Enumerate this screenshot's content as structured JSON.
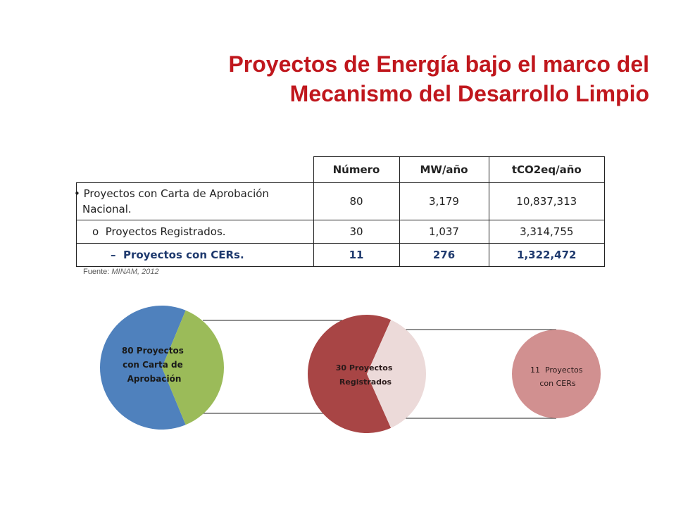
{
  "title": {
    "line1": "Proyectos de Energía bajo el marco del",
    "line2": "Mecanismo del Desarrollo Limpio"
  },
  "table": {
    "headers": [
      "",
      "Número",
      "MW/año",
      "tCO2eq/año"
    ],
    "rows": [
      {
        "bullet": "•",
        "label": "Proyectos con Carta de Aprobación Nacional.",
        "numero": "80",
        "mw": "3,179",
        "tco2": "10,837,313"
      },
      {
        "bullet": "o",
        "label": "Proyectos Registrados.",
        "numero": "30",
        "mw": "1,037",
        "tco2": "3,314,755"
      },
      {
        "bullet": "–",
        "label": "Proyectos con CERs.",
        "numero": "11",
        "mw": "276",
        "tco2": "1,322,472"
      }
    ]
  },
  "source": {
    "label": "Fuente:",
    "value": "MINAM, 2012"
  },
  "chart_data": {
    "type": "pie",
    "pies": [
      {
        "label_lines": [
          "80 Proyectos",
          "con Carta de",
          "Aprobación"
        ],
        "total": 80,
        "highlighted": 30,
        "colors": {
          "main": "#4f81bd",
          "slice": "#9bbb59"
        }
      },
      {
        "label_lines": [
          "30 Proyectos",
          "Registrados"
        ],
        "total": 30,
        "highlighted": 11,
        "colors": {
          "main": "#a84545",
          "slice": "#ecdad9"
        }
      },
      {
        "label_lines": [
          "11  Proyectos",
          "con CERs"
        ],
        "total": 11,
        "colors": {
          "main": "#d19090"
        }
      }
    ]
  }
}
